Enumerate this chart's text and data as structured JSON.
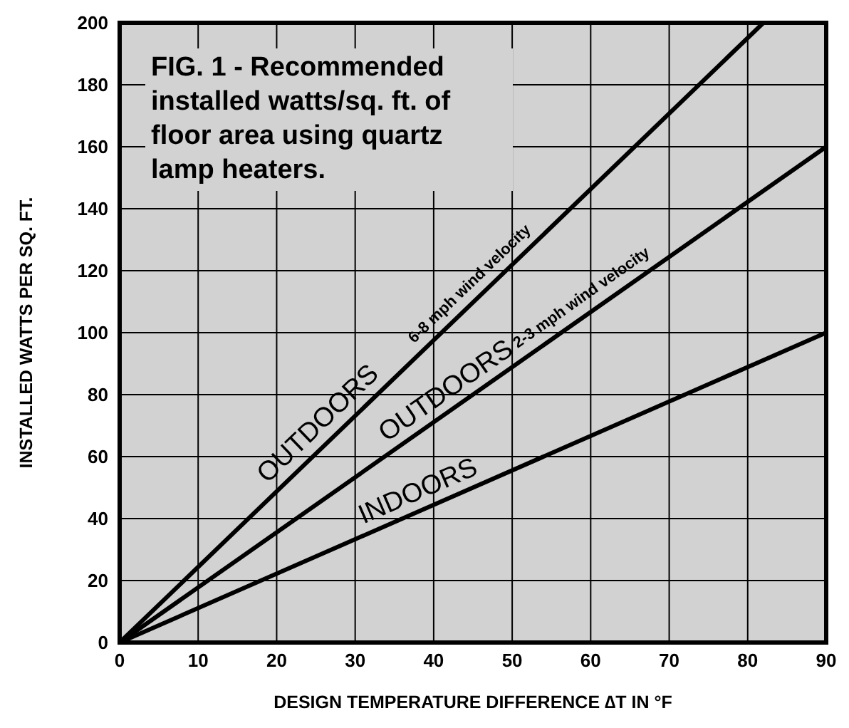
{
  "chart_data": {
    "type": "line",
    "title": "FIG. 1 - Recommended installed watts/sq. ft. of floor area using quartz lamp heaters.",
    "xlabel": "DESIGN TEMPERATURE DIFFERENCE ∆T IN °F",
    "ylabel": "INSTALLED WATTS PER SQ. FT.",
    "series": [
      {
        "color": "#000000",
        "x": [
          0,
          82
        ],
        "values": [
          0,
          200
        ]
      },
      {
        "color": "#000000",
        "x": [
          0,
          90
        ],
        "values": [
          0,
          160
        ]
      },
      {
        "color": "#000000",
        "x": [
          0,
          90
        ],
        "values": [
          0,
          100
        ]
      }
    ],
    "annotations": [
      {
        "text": "OUTDOORS",
        "x": 27,
        "y": 66
      },
      {
        "text": "6-8  mph wind velocity",
        "x": 46,
        "y": 112
      },
      {
        "text": "OUTDOORS",
        "x": 43,
        "y": 76
      },
      {
        "text": "2-3  mph wind velocity",
        "x": 60,
        "y": 107
      },
      {
        "text": "INDOORS",
        "x": 39,
        "y": 43
      }
    ],
    "xlim": [
      0,
      90
    ],
    "xticks": [
      0,
      10,
      20,
      30,
      40,
      50,
      60,
      70,
      80,
      90
    ],
    "ylim": [
      0,
      200
    ],
    "yticks": [
      0,
      20,
      40,
      60,
      80,
      100,
      120,
      140,
      160,
      180,
      200
    ],
    "grid": true,
    "marker": "none",
    "line_style": "solid"
  }
}
